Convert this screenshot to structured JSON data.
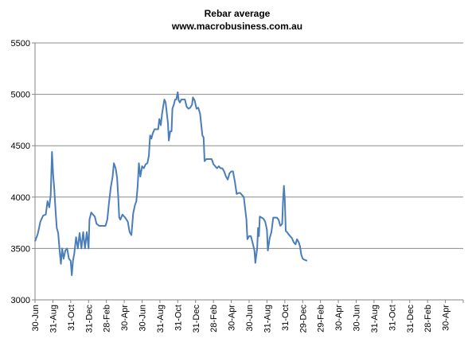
{
  "chart_data": {
    "type": "line",
    "title": "Rebar average",
    "subtitle": "www.macrobusiness.com.au",
    "xlabel": "",
    "ylabel": "",
    "ylim": [
      3000,
      5500
    ],
    "y_ticks": [
      3000,
      3500,
      4000,
      4500,
      5000,
      5500
    ],
    "x_tick_labels": [
      "30-Jun",
      "31-Aug",
      "31-Oct",
      "31-Dec",
      "28-Feb",
      "30-Apr",
      "30-Jun",
      "31-Aug",
      "31-Oct",
      "31-Dec",
      "28-Feb",
      "30-Apr",
      "30-Jun",
      "31-Aug",
      "31-Oct",
      "29-Dec",
      "29-Feb",
      "30-Apr",
      "30-Jun",
      "31-Aug",
      "31-Oct",
      "31-Dec",
      "28-Feb",
      "30-Apr"
    ],
    "grid": "horizontal",
    "legend": "none",
    "line_color": "#4a7ebb",
    "series": [
      {
        "values": [
          [
            0,
            3570
          ],
          [
            0.15,
            3640
          ],
          [
            0.3,
            3760
          ],
          [
            0.45,
            3820
          ],
          [
            0.6,
            3830
          ],
          [
            0.7,
            3960
          ],
          [
            0.8,
            3900
          ],
          [
            0.88,
            4020
          ],
          [
            0.95,
            4440
          ],
          [
            1.02,
            4200
          ],
          [
            1.08,
            4080
          ],
          [
            1.15,
            3870
          ],
          [
            1.22,
            3700
          ],
          [
            1.3,
            3650
          ],
          [
            1.38,
            3480
          ],
          [
            1.45,
            3350
          ],
          [
            1.52,
            3500
          ],
          [
            1.6,
            3400
          ],
          [
            1.7,
            3480
          ],
          [
            1.8,
            3500
          ],
          [
            1.9,
            3400
          ],
          [
            2.0,
            3380
          ],
          [
            2.06,
            3240
          ],
          [
            2.13,
            3380
          ],
          [
            2.2,
            3450
          ],
          [
            2.3,
            3610
          ],
          [
            2.4,
            3500
          ],
          [
            2.5,
            3650
          ],
          [
            2.6,
            3500
          ],
          [
            2.7,
            3660
          ],
          [
            2.8,
            3500
          ],
          [
            2.9,
            3660
          ],
          [
            3.0,
            3500
          ],
          [
            3.05,
            3780
          ],
          [
            3.15,
            3850
          ],
          [
            3.25,
            3830
          ],
          [
            3.35,
            3810
          ],
          [
            3.45,
            3740
          ],
          [
            3.6,
            3720
          ],
          [
            3.8,
            3720
          ],
          [
            3.95,
            3720
          ],
          [
            4.05,
            3780
          ],
          [
            4.15,
            3950
          ],
          [
            4.25,
            4100
          ],
          [
            4.35,
            4200
          ],
          [
            4.42,
            4330
          ],
          [
            4.52,
            4280
          ],
          [
            4.6,
            4190
          ],
          [
            4.66,
            4010
          ],
          [
            4.72,
            3800
          ],
          [
            4.78,
            3780
          ],
          [
            4.9,
            3830
          ],
          [
            5.05,
            3800
          ],
          [
            5.2,
            3760
          ],
          [
            5.3,
            3660
          ],
          [
            5.4,
            3630
          ],
          [
            5.5,
            3840
          ],
          [
            5.6,
            3920
          ],
          [
            5.68,
            3960
          ],
          [
            5.75,
            4100
          ],
          [
            5.82,
            4330
          ],
          [
            5.9,
            4200
          ],
          [
            6.0,
            4300
          ],
          [
            6.1,
            4280
          ],
          [
            6.2,
            4320
          ],
          [
            6.3,
            4330
          ],
          [
            6.38,
            4400
          ],
          [
            6.45,
            4600
          ],
          [
            6.52,
            4570
          ],
          [
            6.6,
            4620
          ],
          [
            6.7,
            4660
          ],
          [
            6.8,
            4660
          ],
          [
            6.9,
            4660
          ],
          [
            6.97,
            4760
          ],
          [
            7.05,
            4700
          ],
          [
            7.12,
            4810
          ],
          [
            7.18,
            4880
          ],
          [
            7.25,
            4950
          ],
          [
            7.32,
            4920
          ],
          [
            7.38,
            4830
          ],
          [
            7.45,
            4720
          ],
          [
            7.5,
            4550
          ],
          [
            7.58,
            4640
          ],
          [
            7.65,
            4640
          ],
          [
            7.7,
            4860
          ],
          [
            7.78,
            4900
          ],
          [
            7.85,
            4950
          ],
          [
            7.92,
            4950
          ],
          [
            8.0,
            5020
          ],
          [
            8.05,
            4940
          ],
          [
            8.12,
            4920
          ],
          [
            8.2,
            4950
          ],
          [
            8.3,
            4950
          ],
          [
            8.4,
            4950
          ],
          [
            8.5,
            4880
          ],
          [
            8.6,
            4860
          ],
          [
            8.7,
            4870
          ],
          [
            8.8,
            4900
          ],
          [
            8.85,
            4970
          ],
          [
            8.95,
            4940
          ],
          [
            9.05,
            4860
          ],
          [
            9.15,
            4870
          ],
          [
            9.25,
            4810
          ],
          [
            9.32,
            4700
          ],
          [
            9.38,
            4600
          ],
          [
            9.45,
            4580
          ],
          [
            9.5,
            4350
          ],
          [
            9.6,
            4370
          ],
          [
            9.7,
            4370
          ],
          [
            9.8,
            4370
          ],
          [
            9.9,
            4370
          ],
          [
            10.0,
            4320
          ],
          [
            10.1,
            4300
          ],
          [
            10.2,
            4280
          ],
          [
            10.3,
            4300
          ],
          [
            10.4,
            4280
          ],
          [
            10.5,
            4280
          ],
          [
            10.6,
            4250
          ],
          [
            10.7,
            4200
          ],
          [
            10.8,
            4170
          ],
          [
            10.9,
            4230
          ],
          [
            11.0,
            4250
          ],
          [
            11.1,
            4250
          ],
          [
            11.15,
            4200
          ],
          [
            11.2,
            4150
          ],
          [
            11.3,
            4030
          ],
          [
            11.4,
            4040
          ],
          [
            11.5,
            4040
          ],
          [
            11.6,
            4020
          ],
          [
            11.7,
            4000
          ],
          [
            11.78,
            3880
          ],
          [
            11.85,
            3780
          ],
          [
            11.9,
            3590
          ],
          [
            12.0,
            3620
          ],
          [
            12.1,
            3620
          ],
          [
            12.2,
            3550
          ],
          [
            12.3,
            3480
          ],
          [
            12.35,
            3360
          ],
          [
            12.45,
            3500
          ],
          [
            12.5,
            3700
          ],
          [
            12.55,
            3620
          ],
          [
            12.6,
            3810
          ],
          [
            12.7,
            3800
          ],
          [
            12.8,
            3790
          ],
          [
            12.9,
            3760
          ],
          [
            13.0,
            3680
          ],
          [
            13.05,
            3480
          ],
          [
            13.15,
            3600
          ],
          [
            13.25,
            3660
          ],
          [
            13.35,
            3800
          ],
          [
            13.45,
            3800
          ],
          [
            13.55,
            3800
          ],
          [
            13.65,
            3780
          ],
          [
            13.75,
            3720
          ],
          [
            13.85,
            3740
          ],
          [
            13.9,
            3960
          ],
          [
            13.95,
            4110
          ],
          [
            14.0,
            3980
          ],
          [
            14.05,
            3670
          ],
          [
            14.12,
            3660
          ],
          [
            14.2,
            3640
          ],
          [
            14.3,
            3620
          ],
          [
            14.4,
            3600
          ],
          [
            14.5,
            3560
          ],
          [
            14.6,
            3540
          ],
          [
            14.68,
            3590
          ],
          [
            14.78,
            3560
          ],
          [
            14.85,
            3520
          ],
          [
            14.92,
            3440
          ],
          [
            15.0,
            3400
          ],
          [
            15.1,
            3390
          ],
          [
            15.25,
            3380
          ]
        ]
      }
    ]
  }
}
